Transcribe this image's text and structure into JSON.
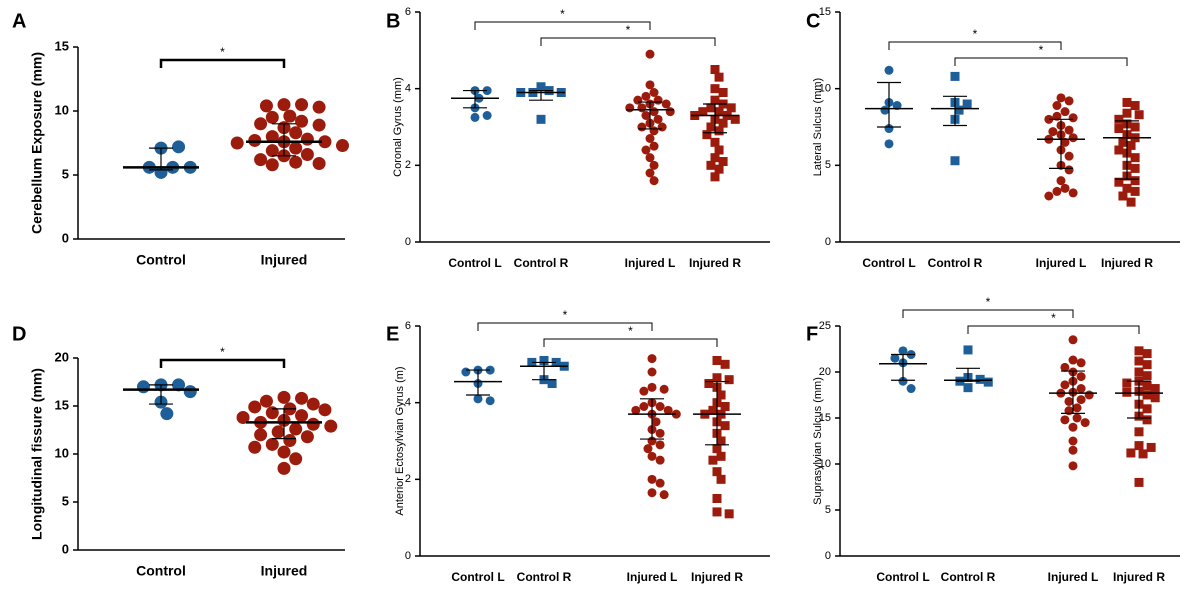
{
  "chart_data": [
    {
      "type": "strip",
      "panel": "A",
      "ylabel": "Cerebellum Exposure (mm)",
      "categories": [
        "Control",
        "Injured"
      ],
      "colors": [
        "#1f5f99",
        "#9b1b0c"
      ],
      "markers": [
        "circle",
        "circle"
      ],
      "values": [
        [
          5.2,
          5.6,
          5.6,
          5.6,
          7.1,
          7.2
        ],
        [
          10.5,
          10.5,
          10.4,
          10.3,
          9.6,
          9.5,
          9.2,
          9.0,
          8.9,
          8.7,
          8.3,
          8.0,
          7.8,
          7.7,
          7.6,
          7.6,
          7.5,
          7.3,
          7.1,
          6.9,
          6.6,
          6.5,
          6.2,
          6.0,
          5.9,
          5.8
        ]
      ],
      "centers": [
        5.6,
        7.6
      ],
      "errors": [
        [
          5.4,
          7.1
        ],
        [
          6.5,
          9.0
        ]
      ],
      "ylim": [
        0,
        15
      ],
      "yticks": [
        0,
        5,
        10,
        15
      ],
      "comparisons": [
        {
          "from": 0,
          "to": 1,
          "label": "*"
        }
      ]
    },
    {
      "type": "strip",
      "panel": "B",
      "ylabel": "Coronal Gyrus (mm)",
      "categories": [
        "Control L",
        "Control R",
        "Injured L",
        "Injured R"
      ],
      "colors": [
        "#1f5f99",
        "#1f5f99",
        "#9b1b0c",
        "#9b1b0c"
      ],
      "markers": [
        "circle",
        "square",
        "circle",
        "square"
      ],
      "values": [
        [
          3.95,
          3.95,
          3.75,
          3.5,
          3.25,
          3.3
        ],
        [
          4.05,
          3.95,
          3.9,
          3.9,
          3.9,
          3.2
        ],
        [
          4.9,
          4.1,
          3.9,
          3.8,
          3.7,
          3.7,
          3.6,
          3.6,
          3.5,
          3.5,
          3.4,
          3.4,
          3.3,
          3.2,
          3.1,
          3.0,
          3.0,
          2.9,
          2.7,
          2.5,
          2.4,
          2.2,
          2.0,
          1.8,
          1.6
        ],
        [
          4.5,
          4.3,
          4.0,
          3.9,
          3.7,
          3.6,
          3.5,
          3.5,
          3.4,
          3.4,
          3.3,
          3.3,
          3.2,
          3.2,
          3.1,
          3.0,
          2.9,
          2.8,
          2.6,
          2.4,
          2.2,
          2.1,
          2.0,
          1.9,
          1.7
        ]
      ],
      "centers": [
        3.75,
        3.9,
        3.45,
        3.3
      ],
      "errors": [
        [
          3.5,
          3.95
        ],
        [
          3.7,
          3.95
        ],
        [
          2.95,
          3.65
        ],
        [
          2.85,
          3.6
        ]
      ],
      "ylim": [
        0,
        6
      ],
      "yticks": [
        0,
        2,
        4,
        6
      ],
      "comparisons": [
        {
          "from": 0,
          "to": 2,
          "label": "*"
        },
        {
          "from": 1,
          "to": 3,
          "label": "*"
        }
      ]
    },
    {
      "type": "strip",
      "panel": "C",
      "ylabel": "Lateral Sulcus (mm)",
      "categories": [
        "Control L",
        "Control R",
        "Injured L",
        "Injured R"
      ],
      "colors": [
        "#1f5f99",
        "#1f5f99",
        "#9b1b0c",
        "#9b1b0c"
      ],
      "markers": [
        "circle",
        "square",
        "circle",
        "square"
      ],
      "values": [
        [
          11.2,
          9.1,
          8.9,
          8.6,
          7.4,
          6.4
        ],
        [
          10.8,
          9.1,
          9.0,
          8.6,
          8.0,
          5.3
        ],
        [
          9.4,
          9.2,
          8.9,
          8.5,
          8.2,
          8.1,
          8.0,
          7.6,
          7.3,
          7.2,
          7.0,
          6.8,
          6.7,
          6.5,
          6.0,
          5.6,
          5.0,
          4.7,
          4.0,
          3.5,
          3.3,
          3.2,
          3.0
        ],
        [
          9.1,
          8.9,
          8.4,
          8.3,
          8.0,
          7.7,
          7.5,
          7.4,
          7.0,
          6.8,
          6.5,
          6.3,
          6.0,
          5.8,
          5.5,
          5.0,
          4.8,
          4.3,
          4.0,
          3.9,
          3.5,
          3.3,
          3.0,
          2.6
        ]
      ],
      "centers": [
        8.7,
        8.7,
        6.7,
        6.8
      ],
      "errors": [
        [
          7.5,
          10.4
        ],
        [
          7.6,
          9.5
        ],
        [
          4.8,
          8.0
        ],
        [
          4.1,
          7.9
        ]
      ],
      "ylim": [
        0,
        15
      ],
      "yticks": [
        0,
        5,
        10,
        15
      ],
      "comparisons": [
        {
          "from": 0,
          "to": 2,
          "label": "*"
        },
        {
          "from": 1,
          "to": 3,
          "label": "*"
        }
      ]
    },
    {
      "type": "strip",
      "panel": "D",
      "ylabel": "Longitudinal fissure (mm)",
      "categories": [
        "Control",
        "Injured"
      ],
      "colors": [
        "#1f5f99",
        "#9b1b0c"
      ],
      "markers": [
        "circle",
        "circle"
      ],
      "values": [
        [
          17.2,
          17.2,
          17.0,
          16.5,
          15.4,
          14.2
        ],
        [
          15.9,
          15.8,
          15.5,
          15.2,
          14.9,
          14.7,
          14.6,
          14.3,
          14.0,
          13.8,
          13.5,
          13.3,
          13.1,
          12.9,
          12.6,
          12.3,
          12.0,
          11.8,
          11.4,
          11.0,
          10.7,
          10.2,
          9.5,
          8.5
        ]
      ],
      "centers": [
        16.7,
        13.3
      ],
      "errors": [
        [
          15.2,
          17.2
        ],
        [
          11.6,
          14.7
        ]
      ],
      "ylim": [
        0,
        20
      ],
      "yticks": [
        0,
        5,
        10,
        15,
        20
      ],
      "comparisons": [
        {
          "from": 0,
          "to": 1,
          "label": "*"
        }
      ]
    },
    {
      "type": "strip",
      "panel": "E",
      "ylabel": "Anterior Ectosylvian Gyrus (m)",
      "categories": [
        "Control L",
        "Control R",
        "Injured L",
        "Injured R"
      ],
      "colors": [
        "#1f5f99",
        "#1f5f99",
        "#9b1b0c",
        "#9b1b0c"
      ],
      "markers": [
        "circle",
        "square",
        "circle",
        "square"
      ],
      "values": [
        [
          4.85,
          4.85,
          4.8,
          4.5,
          4.1,
          4.05
        ],
        [
          5.1,
          5.05,
          5.05,
          4.95,
          4.6,
          4.5
        ],
        [
          5.15,
          4.8,
          4.4,
          4.35,
          4.3,
          4.0,
          3.9,
          3.9,
          3.8,
          3.8,
          3.7,
          3.7,
          3.5,
          3.3,
          3.2,
          3.0,
          2.9,
          2.8,
          2.6,
          2.5,
          2.0,
          1.9,
          1.65,
          1.6
        ],
        [
          5.1,
          5.0,
          4.65,
          4.6,
          4.5,
          4.4,
          4.2,
          4.0,
          3.9,
          3.8,
          3.7,
          3.7,
          3.5,
          3.4,
          3.2,
          3.0,
          2.8,
          2.6,
          2.5,
          2.2,
          2.0,
          1.5,
          1.15,
          1.1
        ]
      ],
      "centers": [
        4.55,
        4.95,
        3.7,
        3.7
      ],
      "errors": [
        [
          4.2,
          4.85
        ],
        [
          4.6,
          5.05
        ],
        [
          3.05,
          4.1
        ],
        [
          2.9,
          4.55
        ]
      ],
      "ylim": [
        0,
        6
      ],
      "yticks": [
        0,
        2,
        4,
        6
      ],
      "comparisons": [
        {
          "from": 0,
          "to": 2,
          "label": "*"
        },
        {
          "from": 1,
          "to": 3,
          "label": "*"
        }
      ]
    },
    {
      "type": "strip",
      "panel": "F",
      "ylabel": "Suprasylvian Sulcus (mm)",
      "categories": [
        "Control L",
        "Control R",
        "Injured L",
        "Injured R"
      ],
      "colors": [
        "#1f5f99",
        "#1f5f99",
        "#9b1b0c",
        "#9b1b0c"
      ],
      "markers": [
        "circle",
        "square",
        "circle",
        "square"
      ],
      "values": [
        [
          22.3,
          21.9,
          21.5,
          21.0,
          19.0,
          18.2
        ],
        [
          22.4,
          19.4,
          19.2,
          19.0,
          18.9,
          18.3
        ],
        [
          23.5,
          21.3,
          21.0,
          20.5,
          20.0,
          19.5,
          19.0,
          18.6,
          18.2,
          17.8,
          17.7,
          17.5,
          17.0,
          16.8,
          16.1,
          15.8,
          15.0,
          14.8,
          14.5,
          14.0,
          12.5,
          11.5,
          9.8
        ],
        [
          22.3,
          22.0,
          21.2,
          20.8,
          20.0,
          19.6,
          19.0,
          18.8,
          18.5,
          18.2,
          17.9,
          17.8,
          17.5,
          17.2,
          16.5,
          16.0,
          15.2,
          14.8,
          13.5,
          12.0,
          11.8,
          11.2,
          11.1,
          8.0
        ]
      ],
      "centers": [
        20.9,
        19.1,
        17.7,
        17.7
      ],
      "errors": [
        [
          19.1,
          21.9
        ],
        [
          19.0,
          20.4
        ],
        [
          15.5,
          20.1
        ],
        [
          15.0,
          19.0
        ]
      ],
      "ylim": [
        0,
        25
      ],
      "yticks": [
        0,
        5,
        10,
        15,
        20,
        25
      ],
      "comparisons": [
        {
          "from": 0,
          "to": 2,
          "label": "*"
        },
        {
          "from": 1,
          "to": 3,
          "label": "*"
        }
      ]
    }
  ]
}
